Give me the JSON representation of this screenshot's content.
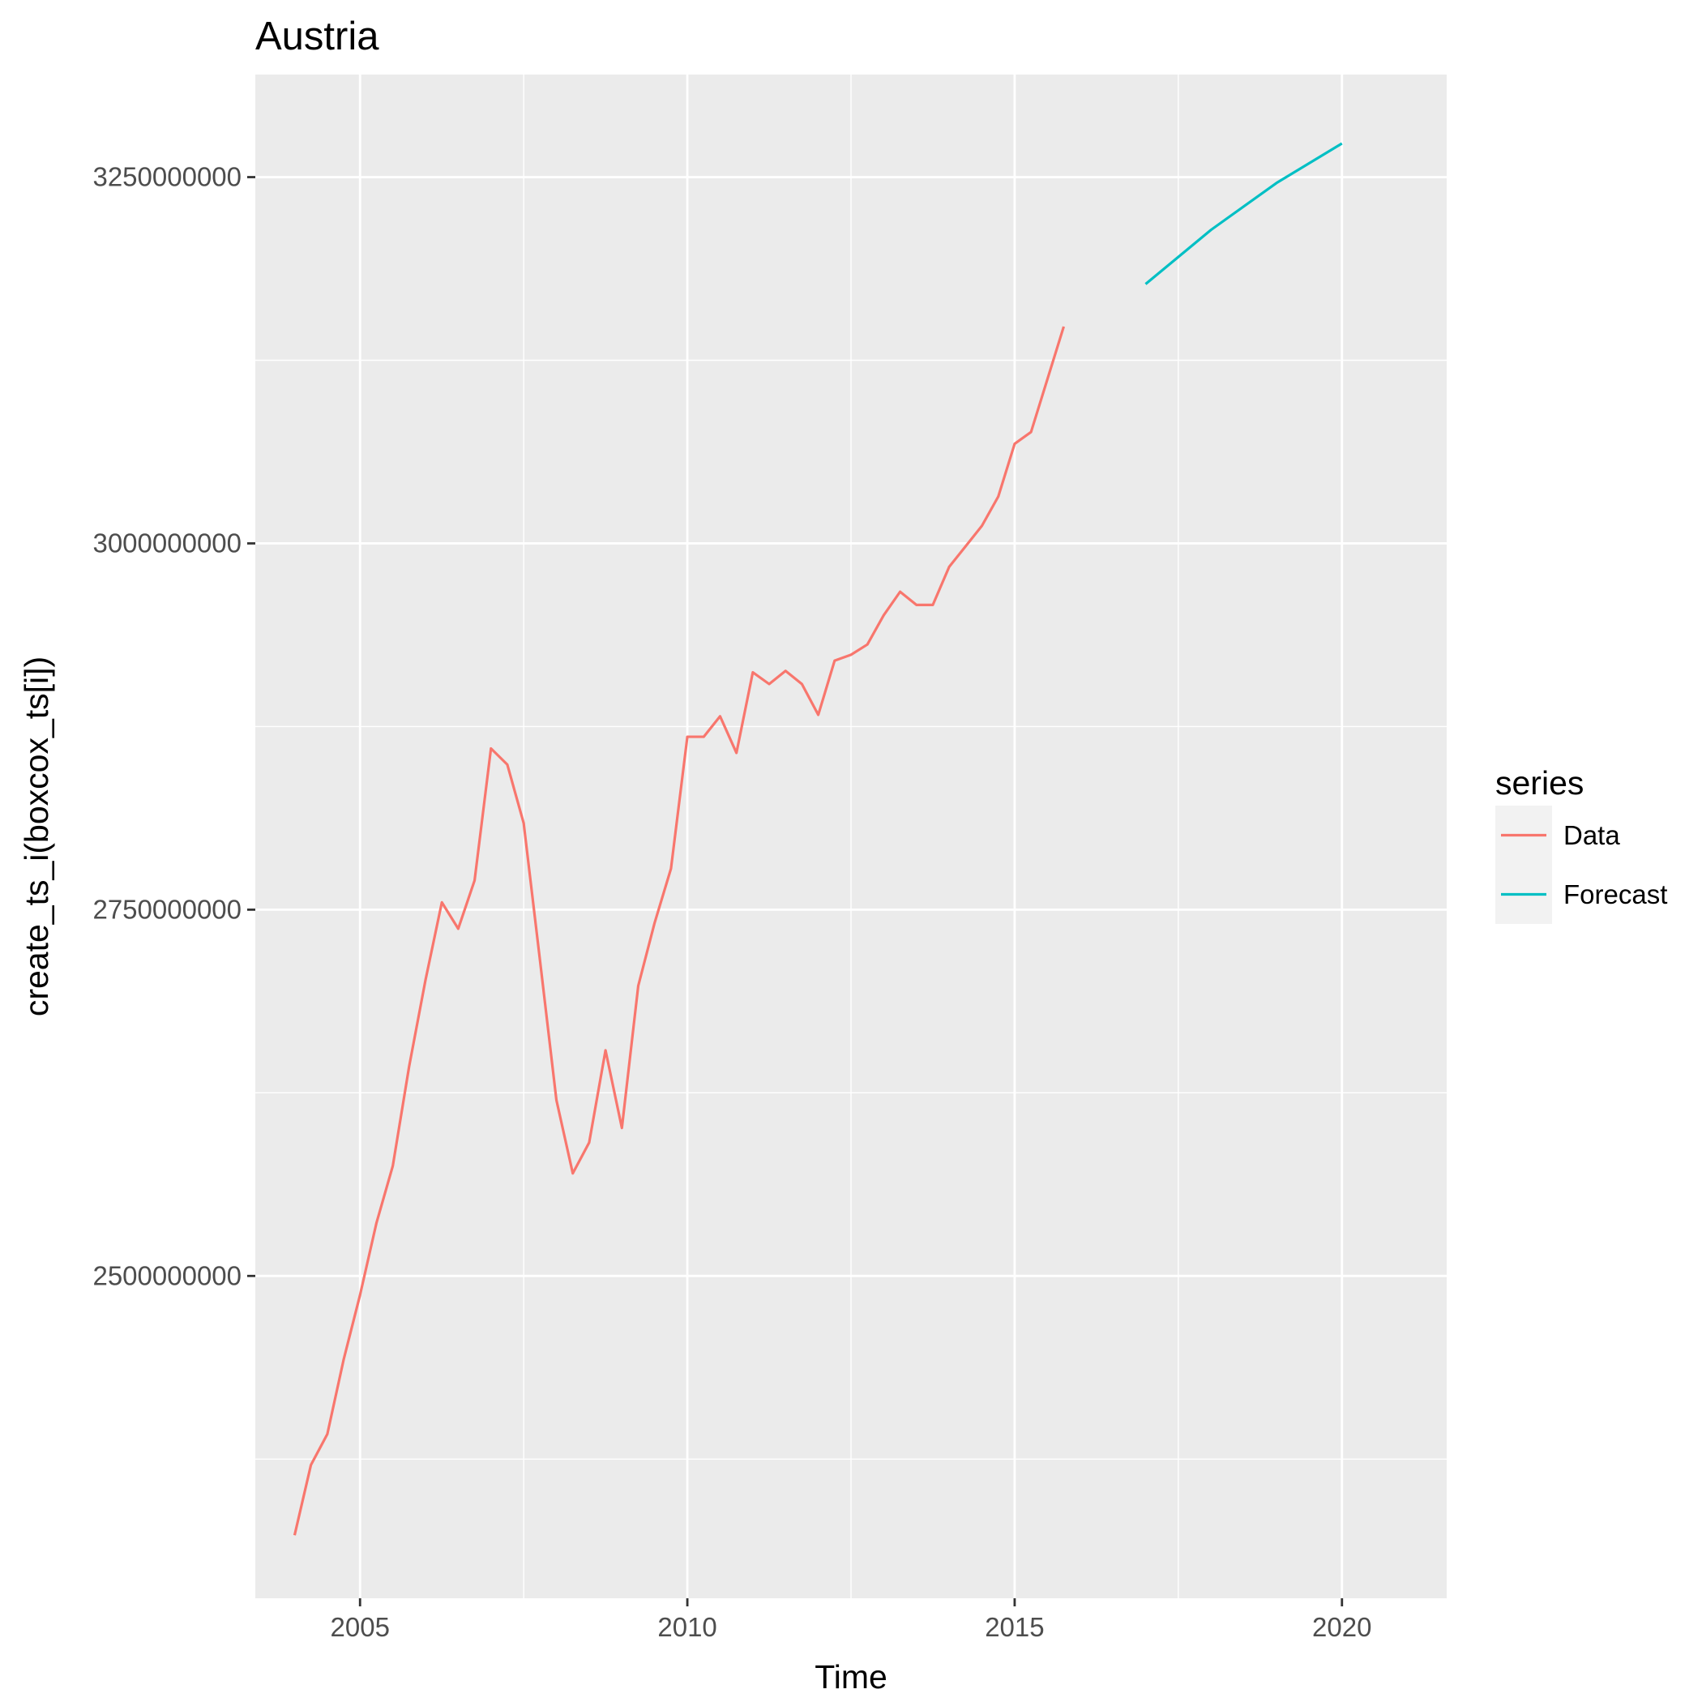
{
  "chart_data": {
    "type": "line",
    "title": "Austria",
    "xlabel": "Time",
    "ylabel": "create_ts_i(boxcox_ts[i])",
    "xlim": [
      2003.4,
      2021.6
    ],
    "ylim": [
      2280000000,
      3320000000
    ],
    "x_ticks": [
      2005,
      2010,
      2015,
      2020
    ],
    "x_tick_labels": [
      "2005",
      "2010",
      "2015",
      "2020"
    ],
    "y_ticks": [
      2500000000,
      2750000000,
      3000000000,
      3250000000
    ],
    "y_tick_labels": [
      "2500000000",
      "2750000000",
      "3000000000",
      "3250000000"
    ],
    "y_minor_ticks": [
      2375000000,
      2625000000,
      2875000000,
      3125000000
    ],
    "x_minor_ticks": [
      2007.5,
      2012.5,
      2017.5
    ],
    "grid": true,
    "legend": {
      "title": "series",
      "position": "right"
    },
    "series": [
      {
        "name": "Data",
        "color": "#F8766D",
        "x": [
          2004.0,
          2004.25,
          2004.5,
          2004.75,
          2005.0,
          2005.25,
          2005.5,
          2005.75,
          2006.0,
          2006.25,
          2006.5,
          2006.75,
          2007.0,
          2007.25,
          2007.5,
          2007.75,
          2008.0,
          2008.25,
          2008.5,
          2008.75,
          2009.0,
          2009.25,
          2009.5,
          2009.75,
          2010.0,
          2010.25,
          2010.5,
          2010.75,
          2011.0,
          2011.25,
          2011.5,
          2011.75,
          2012.0,
          2012.25,
          2012.5,
          2012.75,
          2013.0,
          2013.25,
          2013.5,
          2013.75,
          2014.0,
          2014.25,
          2014.5,
          2014.75,
          2015.0,
          2015.25,
          2015.5,
          2015.75
        ],
        "y": [
          2323000000,
          2371000000,
          2392000000,
          2443000000,
          2487000000,
          2536000000,
          2575000000,
          2643000000,
          2702000000,
          2755000000,
          2737000000,
          2770000000,
          2860000000,
          2849000000,
          2809000000,
          2715000000,
          2620000000,
          2570000000,
          2591000000,
          2654000000,
          2601000000,
          2698000000,
          2741000000,
          2778000000,
          2868000000,
          2868000000,
          2882000000,
          2857000000,
          2912000000,
          2904000000,
          2913000000,
          2904000000,
          2883000000,
          2920000000,
          2924000000,
          2931000000,
          2951000000,
          2967000000,
          2958000000,
          2958000000,
          2984000000,
          2998000000,
          3012000000,
          3032000000,
          3068000000,
          3076000000,
          3112000000,
          3148000000
        ]
      },
      {
        "name": "Forecast",
        "color": "#00BFC4",
        "x": [
          2017.0,
          2018.0,
          2019.0,
          2020.0
        ],
        "y": [
          3177000000,
          3214000000,
          3246000000,
          3273000000
        ]
      }
    ]
  }
}
